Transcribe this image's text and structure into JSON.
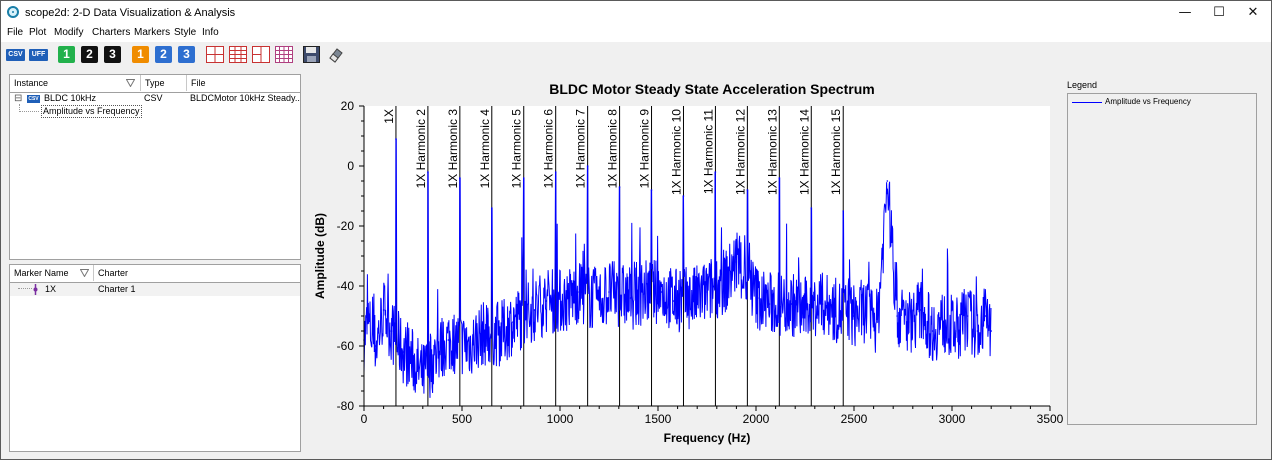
{
  "window": {
    "title": "scope2d: 2-D Data Visualization & Analysis"
  },
  "window_controls": {
    "minimize": "—",
    "maximize": "☐",
    "close": "✕"
  },
  "menu": {
    "items": [
      "File",
      "Plot",
      "Modify",
      "Charters",
      "Markers",
      "Style",
      "Info"
    ]
  },
  "toolbar": {
    "csv_label": "CSV",
    "uff_label": "UFF",
    "layout_buttons": [
      "1",
      "2",
      "3"
    ],
    "layout_colors": [
      "#22b14c",
      "#111111",
      "#111111"
    ],
    "channel_buttons": [
      "1",
      "2",
      "3"
    ],
    "channel_colors": [
      "#f08c00",
      "#2e6fd0",
      "#2e6fd0"
    ],
    "icons": [
      "grid-2row-icon",
      "grid-4x4-icon",
      "grid-2col-icon",
      "grid-fine-icon",
      "save-icon",
      "eraser-icon"
    ]
  },
  "instance_panel": {
    "headers": [
      "Instance",
      "Type",
      "File"
    ],
    "rows": [
      {
        "expander": "⊟",
        "badge": "CSV",
        "instance": "BLDC 10kHz",
        "type": "CSV",
        "file": "BLDCMotor 10kHz Steady..."
      }
    ],
    "child": "Amplitude vs Frequency"
  },
  "marker_panel": {
    "headers": [
      "Marker Name",
      "Charter"
    ],
    "rows": [
      {
        "name": "1X",
        "charter": "Charter 1"
      }
    ]
  },
  "legend": {
    "title": "Legend",
    "entries": [
      {
        "label": "Amplitude vs Frequency",
        "color": "#0000ff"
      }
    ]
  },
  "chart_data": {
    "type": "line",
    "title": "BLDC Motor Steady State Acceleration Spectrum",
    "xlabel": "Frequency (Hz)",
    "ylabel": "Amplitude (dB)",
    "xlim": [
      0,
      3500
    ],
    "ylim": [
      -80,
      20
    ],
    "xticks": [
      0,
      500,
      1000,
      1500,
      2000,
      2500,
      3000,
      3500
    ],
    "yticks": [
      20,
      0,
      -20,
      -40,
      -60,
      -80
    ],
    "series_color": "#0000ff",
    "series": [
      {
        "name": "Amplitude vs Frequency",
        "x": [
          0,
          20,
          60,
          100,
          140,
          163,
          200,
          250,
          300,
          326,
          380,
          430,
          489,
          540,
          600,
          652,
          700,
          760,
          815,
          870,
          930,
          978,
          1030,
          1090,
          1141,
          1200,
          1250,
          1304,
          1360,
          1420,
          1467,
          1520,
          1580,
          1630,
          1690,
          1750,
          1793,
          1850,
          1900,
          1956,
          2010,
          2070,
          2119,
          2180,
          2240,
          2282,
          2340,
          2400,
          2445,
          2500,
          2560,
          2620,
          2670,
          2720,
          2780,
          2840,
          2900,
          2960,
          3020,
          3080,
          3130,
          3170,
          3200
        ],
        "y": [
          -58,
          -52,
          -60,
          -48,
          -55,
          9,
          -62,
          -65,
          -70,
          -2,
          -62,
          -58,
          -4,
          -60,
          -56,
          -14,
          -56,
          -52,
          -4,
          -48,
          -45,
          -2,
          -45,
          -42,
          0,
          -45,
          -42,
          -7,
          -44,
          -42,
          -8,
          -42,
          -45,
          -10,
          -44,
          -42,
          -2,
          -38,
          -32,
          -8,
          -44,
          -46,
          -4,
          -46,
          -48,
          -14,
          -46,
          -48,
          -15,
          -50,
          -48,
          -52,
          -5,
          -50,
          -52,
          -48,
          -55,
          -52,
          -55,
          -50,
          -55,
          -50,
          -55
        ]
      }
    ],
    "harmonic_markers": [
      {
        "label": "1X",
        "x": 163
      },
      {
        "label": "1X Harmonic 2",
        "x": 326
      },
      {
        "label": "1X Harmonic 3",
        "x": 489
      },
      {
        "label": "1X Harmonic 4",
        "x": 652
      },
      {
        "label": "1X Harmonic 5",
        "x": 815
      },
      {
        "label": "1X Harmonic 6",
        "x": 978
      },
      {
        "label": "1X Harmonic 7",
        "x": 1141
      },
      {
        "label": "1X Harmonic 8",
        "x": 1304
      },
      {
        "label": "1X Harmonic 9",
        "x": 1467
      },
      {
        "label": "1X Harmonic 10",
        "x": 1630
      },
      {
        "label": "1X Harmonic 11",
        "x": 1793
      },
      {
        "label": "1X Harmonic 12",
        "x": 1956
      },
      {
        "label": "1X Harmonic 13",
        "x": 2119
      },
      {
        "label": "1X Harmonic 14",
        "x": 2282
      },
      {
        "label": "1X Harmonic 15",
        "x": 2445
      }
    ],
    "grid": false,
    "legend_position": "right"
  }
}
